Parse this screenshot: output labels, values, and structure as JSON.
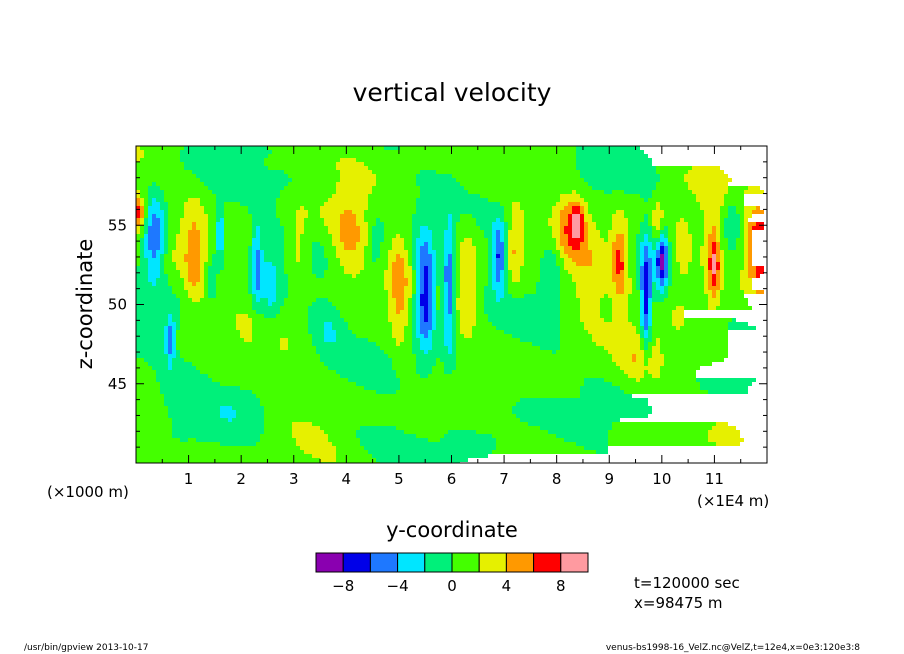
{
  "chart_data": {
    "type": "heatmap",
    "title": "vertical velocity",
    "xlabel": "y-coordinate",
    "ylabel": "z-coordinate",
    "x_scale_note": "(×1000 m)",
    "x_units": "(×1E4 m)",
    "xlim": [
      0,
      12
    ],
    "ylim": [
      40,
      60
    ],
    "x_ticks": [
      "1",
      "2",
      "3",
      "4",
      "5",
      "6",
      "7",
      "8",
      "9",
      "10",
      "11"
    ],
    "y_ticks": [
      "45",
      "50",
      "55"
    ],
    "colorbar": {
      "levels": [
        -10,
        -8,
        -6,
        -4,
        -2,
        0,
        2,
        4,
        6,
        8,
        10
      ],
      "labels": [
        "−8",
        "−4",
        "0",
        "4",
        "8"
      ],
      "colors": [
        "#8a00b0",
        "#0000e8",
        "#1e78ff",
        "#00e6ff",
        "#00f07a",
        "#44ff00",
        "#e6f000",
        "#ff9900",
        "#ff0000",
        "#ff9aa0"
      ]
    },
    "info": {
      "time": "t=120000 sec",
      "position": "x=98475 m"
    },
    "footer": {
      "left": "/usr/bin/gpview  2013-10-17",
      "right": "venus-bs1998-16_VelZ.nc@VelZ,t=12e4,x=0e3:120e3:8"
    },
    "features": [
      {
        "y": 0.35,
        "z": 54.2,
        "w": -7.5,
        "sy": 0.22,
        "sz": 2.6
      },
      {
        "y": 0.65,
        "z": 47.8,
        "w": -6.0,
        "sy": 0.09,
        "sz": 1.5
      },
      {
        "y": 0.05,
        "z": 55.8,
        "w": 6.5,
        "sy": 0.14,
        "sz": 1.1
      },
      {
        "y": 1.1,
        "z": 53.0,
        "w": 3.6,
        "sy": 0.18,
        "sz": 3.2
      },
      {
        "y": 1.45,
        "z": 51.5,
        "w": -3.0,
        "sy": 0.09,
        "sz": 1.5
      },
      {
        "y": 1.6,
        "z": 54.5,
        "w": -5.5,
        "sy": 0.09,
        "sz": 1.8
      },
      {
        "y": 2.3,
        "z": 52.5,
        "w": -5.0,
        "sy": 0.1,
        "sz": 3.0
      },
      {
        "y": 2.55,
        "z": 51.0,
        "w": -3.0,
        "sy": 0.18,
        "sz": 2.8
      },
      {
        "y": 3.1,
        "z": 53.5,
        "w": 2.8,
        "sy": 0.2,
        "sz": 2.5
      },
      {
        "y": 4.05,
        "z": 54.2,
        "w": 3.6,
        "sy": 0.35,
        "sz": 2.8
      },
      {
        "y": 3.65,
        "z": 48.5,
        "w": -2.5,
        "sy": 0.3,
        "sz": 1.8
      },
      {
        "y": 4.55,
        "z": 53.5,
        "w": -2.4,
        "sy": 0.18,
        "sz": 2.2
      },
      {
        "y": 5.0,
        "z": 51.0,
        "w": 3.2,
        "sy": 0.17,
        "sz": 4.0
      },
      {
        "y": 5.5,
        "z": 50.8,
        "w": -9.5,
        "sy": 0.19,
        "sz": 3.5
      },
      {
        "y": 5.95,
        "z": 51.0,
        "w": -7.0,
        "sy": 0.11,
        "sz": 3.8
      },
      {
        "y": 6.3,
        "z": 51.5,
        "w": 3.0,
        "sy": 0.2,
        "sz": 4.0
      },
      {
        "y": 6.9,
        "z": 53.0,
        "w": -7.0,
        "sy": 0.14,
        "sz": 2.2
      },
      {
        "y": 7.2,
        "z": 53.5,
        "w": 3.4,
        "sy": 0.15,
        "sz": 2.5
      },
      {
        "y": 7.9,
        "z": 52.5,
        "w": -2.6,
        "sy": 0.2,
        "sz": 3.0
      },
      {
        "y": 8.25,
        "z": 55.0,
        "w": 3.8,
        "sy": 0.3,
        "sz": 2.2
      },
      {
        "y": 8.4,
        "z": 55.2,
        "w": 5.0,
        "sy": 0.12,
        "sz": 1.2
      },
      {
        "y": 8.6,
        "z": 51.5,
        "w": 2.4,
        "sy": 0.35,
        "sz": 2.5
      },
      {
        "y": 9.2,
        "z": 52.8,
        "w": 5.5,
        "sy": 0.16,
        "sz": 2.5
      },
      {
        "y": 9.7,
        "z": 50.5,
        "w": -8.5,
        "sy": 0.11,
        "sz": 3.5
      },
      {
        "y": 9.95,
        "z": 55.0,
        "w": 5.0,
        "sy": 0.12,
        "sz": 1.5
      },
      {
        "y": 10.0,
        "z": 53.0,
        "w": -8.5,
        "sy": 0.12,
        "sz": 2.2
      },
      {
        "y": 10.4,
        "z": 53.0,
        "w": 3.2,
        "sy": 0.25,
        "sz": 3.0
      },
      {
        "y": 10.95,
        "z": 53.0,
        "w": 3.6,
        "sy": 0.22,
        "sz": 3.5
      },
      {
        "y": 11.0,
        "z": 52.5,
        "w": 5.0,
        "sy": 0.1,
        "sz": 2.0
      },
      {
        "y": 11.85,
        "z": 53.5,
        "w": 7.0,
        "sy": 0.25,
        "sz": 2.6
      },
      {
        "y": 11.35,
        "z": 55.5,
        "w": -2.8,
        "sy": 0.2,
        "sz": 1.5
      },
      {
        "y": 9.6,
        "z": 46.5,
        "w": 2.2,
        "sy": 0.35,
        "sz": 1.5
      },
      {
        "y": 2.0,
        "z": 43.5,
        "w": -1.6,
        "sy": 0.6,
        "sz": 1.8
      },
      {
        "y": 7.0,
        "z": 43.0,
        "w": -1.6,
        "sy": 0.7,
        "sz": 2.0
      },
      {
        "y": 10.5,
        "z": 43.5,
        "w": -1.5,
        "sy": 0.6,
        "sz": 1.6
      },
      {
        "y": 4.5,
        "z": 41.5,
        "w": -1.4,
        "sy": 0.8,
        "sz": 1.5
      },
      {
        "y": 6.2,
        "z": 46.0,
        "w": -1.5,
        "sy": 0.6,
        "sz": 1.5
      },
      {
        "y": 0.9,
        "z": 45.0,
        "w": -1.5,
        "sy": 0.5,
        "sz": 2.0
      },
      {
        "y": 3.0,
        "z": 57.5,
        "w": -1.5,
        "sy": 0.8,
        "sz": 1.2
      },
      {
        "y": 9.0,
        "z": 58.0,
        "w": -1.4,
        "sy": 0.8,
        "sz": 1.2
      }
    ]
  }
}
